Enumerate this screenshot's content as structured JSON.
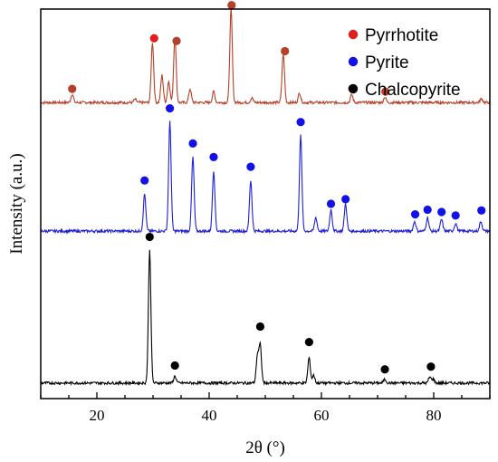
{
  "chart_data": {
    "type": "line",
    "xlabel": "2θ (°)",
    "ylabel": "Intensity (a.u.)",
    "xlim": [
      10,
      90
    ],
    "ylim": [
      0,
      100
    ],
    "x_ticks": [
      "20",
      "40",
      "60",
      "80"
    ],
    "legend_placement": "top-right",
    "series": [
      {
        "name": "Pyrrhotite",
        "line_color": "#b5402a",
        "marker_color": "#e11d1d",
        "marker_fill": "#b5402a",
        "baseline": 76,
        "peaks": [
          {
            "x": 15.6,
            "h": 2.2
          },
          {
            "x": 26.8,
            "h": 0.8
          },
          {
            "x": 29.9,
            "h": 15.5
          },
          {
            "x": 31.6,
            "h": 7.0
          },
          {
            "x": 32.8,
            "h": 5.5
          },
          {
            "x": 33.9,
            "h": 17.0
          },
          {
            "x": 36.6,
            "h": 3.5
          },
          {
            "x": 40.8,
            "h": 2.8
          },
          {
            "x": 43.9,
            "h": 24.0
          },
          {
            "x": 47.6,
            "h": 1.2
          },
          {
            "x": 53.2,
            "h": 12.5
          },
          {
            "x": 56.1,
            "h": 2.5
          },
          {
            "x": 65.4,
            "h": 2.0
          },
          {
            "x": 71.3,
            "h": 1.4
          },
          {
            "x": 88.5,
            "h": 1.0
          }
        ],
        "markers": [
          {
            "x": 15.6,
            "y": 79.5,
            "color": "#b5402a"
          },
          {
            "x": 30.2,
            "y": 92.5,
            "color": "#e11d1d"
          },
          {
            "x": 34.2,
            "y": 91.8,
            "color": "#b5402a"
          },
          {
            "x": 44.0,
            "y": 101.0,
            "color": "#b5402a"
          },
          {
            "x": 53.5,
            "y": 89.2,
            "color": "#b5402a"
          },
          {
            "x": 65.5,
            "y": 79.6,
            "color": "#e11d1d"
          },
          {
            "x": 71.4,
            "y": 78.8,
            "color": "#b5402a"
          }
        ]
      },
      {
        "name": "Pyrite",
        "line_color": "#1f1fd6",
        "marker_color": "#1212e6",
        "baseline": 43,
        "peaks": [
          {
            "x": 28.5,
            "h": 9.5
          },
          {
            "x": 33.0,
            "h": 28.0
          },
          {
            "x": 37.1,
            "h": 19.0
          },
          {
            "x": 40.8,
            "h": 15.5
          },
          {
            "x": 47.4,
            "h": 13.0
          },
          {
            "x": 56.3,
            "h": 24.5
          },
          {
            "x": 59.0,
            "h": 3.5
          },
          {
            "x": 61.7,
            "h": 5.5
          },
          {
            "x": 64.3,
            "h": 7.0
          },
          {
            "x": 76.6,
            "h": 2.5
          },
          {
            "x": 78.9,
            "h": 3.5
          },
          {
            "x": 81.4,
            "h": 3.0
          },
          {
            "x": 83.9,
            "h": 2.0
          },
          {
            "x": 88.4,
            "h": 2.5
          }
        ],
        "markers": [
          {
            "x": 28.5,
            "y": 56.0
          },
          {
            "x": 33.0,
            "y": 74.5
          },
          {
            "x": 37.1,
            "y": 65.5
          },
          {
            "x": 40.8,
            "y": 62.0
          },
          {
            "x": 47.4,
            "y": 59.5
          },
          {
            "x": 56.3,
            "y": 71.0
          },
          {
            "x": 61.7,
            "y": 50.0
          },
          {
            "x": 64.3,
            "y": 51.2
          },
          {
            "x": 76.7,
            "y": 47.3
          },
          {
            "x": 78.9,
            "y": 48.5
          },
          {
            "x": 81.4,
            "y": 47.9
          },
          {
            "x": 83.9,
            "y": 47.0
          },
          {
            "x": 88.5,
            "y": 48.3
          }
        ]
      },
      {
        "name": "Chalcopyrite",
        "line_color": "#000000",
        "marker_color": "#000000",
        "baseline": 4,
        "peaks": [
          {
            "x": 29.4,
            "h": 34.0
          },
          {
            "x": 33.9,
            "h": 1.8
          },
          {
            "x": 48.6,
            "h": 7.0
          },
          {
            "x": 49.1,
            "h": 9.5
          },
          {
            "x": 57.8,
            "h": 6.5
          },
          {
            "x": 58.6,
            "h": 2.0
          },
          {
            "x": 71.3,
            "h": 1.0
          },
          {
            "x": 79.3,
            "h": 1.5
          },
          {
            "x": 79.9,
            "h": 1.0
          }
        ],
        "markers": [
          {
            "x": 29.4,
            "y": 41.5
          },
          {
            "x": 33.9,
            "y": 8.5
          },
          {
            "x": 49.1,
            "y": 18.5
          },
          {
            "x": 57.8,
            "y": 14.5
          },
          {
            "x": 71.3,
            "y": 7.5
          },
          {
            "x": 79.5,
            "y": 8.2
          }
        ]
      }
    ]
  }
}
